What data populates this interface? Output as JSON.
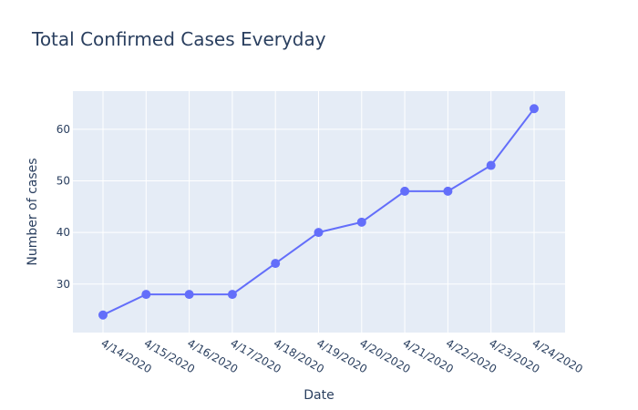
{
  "chart_data": {
    "type": "line",
    "title": "Total Confirmed Cases Everyday",
    "xlabel": "Date",
    "ylabel": "Number of cases",
    "x": [
      "4/14/2020",
      "4/15/2020",
      "4/16/2020",
      "4/17/2020",
      "4/18/2020",
      "4/19/2020",
      "4/20/2020",
      "4/21/2020",
      "4/22/2020",
      "4/23/2020",
      "4/24/2020"
    ],
    "values": [
      24,
      28,
      28,
      28,
      34,
      40,
      42,
      48,
      48,
      53,
      64
    ],
    "yticks": [
      30,
      40,
      50,
      60
    ],
    "ylim": [
      20.6,
      67.4
    ],
    "grid": true,
    "colors": {
      "series": "#636efa",
      "plot_bg": "#e5ecf6",
      "grid": "#ffffff",
      "text": "#2a3f5f"
    }
  }
}
